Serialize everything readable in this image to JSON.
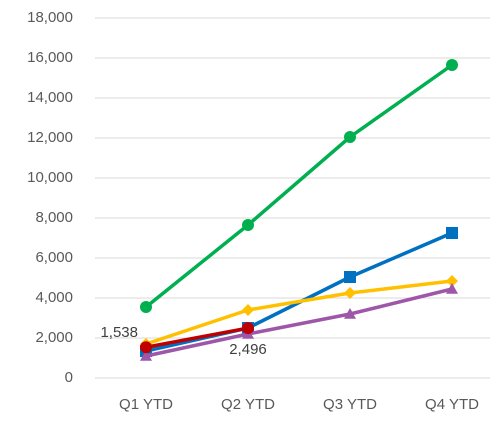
{
  "chart_data": {
    "type": "line",
    "categories": [
      "Q1 YTD",
      "Q2 YTD",
      "Q3 YTD",
      "Q4 YTD"
    ],
    "series": [
      {
        "color": "#00b050",
        "marker": "circle",
        "values": [
          3550,
          7650,
          12050,
          15650
        ]
      },
      {
        "color": "#0070c0",
        "marker": "square",
        "values": [
          1350,
          2500,
          5050,
          7250
        ]
      },
      {
        "color": "#ffc000",
        "marker": "diamond",
        "values": [
          1700,
          3400,
          4250,
          4850
        ]
      },
      {
        "color": "#9e57a8",
        "marker": "triangle",
        "values": [
          1100,
          2200,
          3200,
          4450
        ]
      },
      {
        "color": "#c00000",
        "marker": "circle",
        "values": [
          1538,
          2496,
          null,
          null
        ],
        "value_labels": [
          "1,538",
          "2,496",
          null,
          null
        ]
      }
    ],
    "ylim": [
      0,
      18000
    ],
    "yticks": [
      0,
      {
        "value": 2000,
        "label": "2,000"
      },
      {
        "value": 4000,
        "label": "4,000"
      },
      {
        "value": 6000,
        "label": "6,000"
      },
      {
        "value": 8000,
        "label": "8,000"
      },
      {
        "value": 10000,
        "label": "10,000"
      },
      {
        "value": 12000,
        "label": "12,000"
      },
      {
        "value": 14000,
        "label": "14,000"
      },
      {
        "value": 16000,
        "label": "16,000"
      },
      {
        "value": 18000,
        "label": "18,000"
      }
    ],
    "grid": true
  }
}
